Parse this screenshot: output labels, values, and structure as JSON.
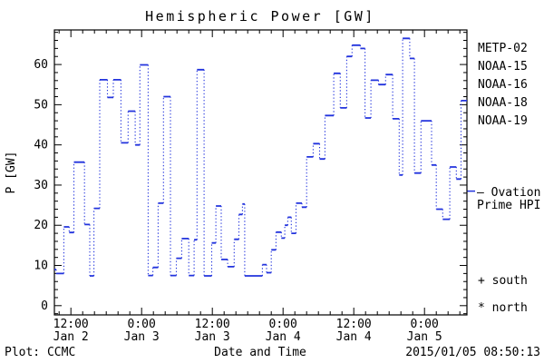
{
  "title": "Hemispheric Power [GW]",
  "axes": {
    "ylabel": "P [GW]",
    "xlabel": "Date and Time",
    "y_ticks": [
      0,
      10,
      20,
      30,
      40,
      50,
      60
    ],
    "y_minor_step_gw": 2,
    "ylim": [
      -2.3,
      68.6
    ],
    "x_minor_step_hours": 2,
    "time_range_hours_from_jan2_0000": [
      9.2,
      79.2
    ],
    "x_major_ticks": [
      {
        "time": "12:00",
        "date": "Jan 2"
      },
      {
        "time": "0:00",
        "date": "Jan 3"
      },
      {
        "time": "12:00",
        "date": "Jan 3"
      },
      {
        "time": "0:00",
        "date": "Jan 4"
      },
      {
        "time": "12:00",
        "date": "Jan 4"
      },
      {
        "time": "0:00",
        "date": "Jan 5"
      }
    ]
  },
  "legend": {
    "satellites": [
      {
        "label": "METP-02",
        "color": "#000000"
      },
      {
        "label": "NOAA-15",
        "color": "#2233dd"
      },
      {
        "label": "NOAA-16",
        "color": "#33bbff"
      },
      {
        "label": "NOAA-18",
        "color": "#66dd88"
      },
      {
        "label": "NOAA-19",
        "color": "#ff9922"
      }
    ],
    "ovation": {
      "line1": "— Ovation",
      "line2": "Prime HPI",
      "color": "#2233dd",
      "marker_gw": 28.5
    },
    "south_label": "+ south",
    "north_label": "* north"
  },
  "footer": {
    "left": "Plot: CCMC",
    "right": "2015/01/05 08:50:13"
  },
  "chart_data": {
    "type": "line",
    "style": "step-after-dotted",
    "series": [
      {
        "name": "Ovation Prime HPI (NOAA-15)",
        "color": "#2233dd"
      }
    ],
    "title": "Hemispheric Power [GW]",
    "xlabel": "Date and Time",
    "ylabel": "P [GW]",
    "ylim": [
      -2.3,
      68.6
    ],
    "t_hours_from_jan2_0000": [
      9.2,
      9.5,
      10.8,
      11.7,
      12.5,
      14.3,
      15.2,
      15.9,
      16.9,
      18.2,
      19.2,
      20.5,
      21.7,
      22.9,
      23.7,
      25.1,
      25.9,
      26.8,
      27.7,
      28.9,
      29.9,
      30.8,
      32.0,
      32.9,
      33.4,
      34.6,
      35.9,
      36.6,
      37.5,
      38.6,
      39.7,
      40.5,
      41.1,
      41.5,
      44.5,
      45.2,
      46.0,
      46.8,
      47.7,
      48.3,
      48.8,
      49.4,
      50.2,
      51.2,
      52.0,
      53.1,
      54.2,
      55.1,
      56.6,
      57.7,
      58.8,
      59.7,
      61.1,
      61.9,
      62.9,
      64.2,
      65.4,
      66.6,
      67.7,
      68.3,
      69.5,
      70.3,
      71.4,
      73.2,
      74.0,
      75.1,
      76.3,
      77.4,
      78.2
    ],
    "p_gw": [
      9.0,
      8.0,
      19.6,
      18.2,
      35.7,
      20.2,
      7.4,
      24.2,
      56.2,
      51.8,
      56.2,
      40.5,
      48.4,
      40.0,
      59.9,
      7.5,
      9.5,
      25.5,
      52.0,
      7.5,
      11.8,
      16.7,
      7.5,
      16.4,
      58.7,
      7.4,
      15.6,
      24.8,
      11.5,
      9.7,
      16.5,
      22.7,
      25.3,
      7.4,
      10.2,
      8.2,
      13.9,
      18.3,
      16.8,
      20.0,
      22.0,
      18.0,
      25.5,
      24.5,
      37.0,
      40.3,
      36.5,
      47.3,
      57.8,
      49.2,
      62.0,
      64.8,
      64.0,
      46.7,
      56.1,
      55.0,
      57.5,
      46.5,
      32.5,
      66.5,
      61.5,
      33.0,
      46.0,
      35.0,
      24.0,
      21.5,
      34.5,
      31.5,
      51.0
    ],
    "t_end_hours": 79.2
  }
}
